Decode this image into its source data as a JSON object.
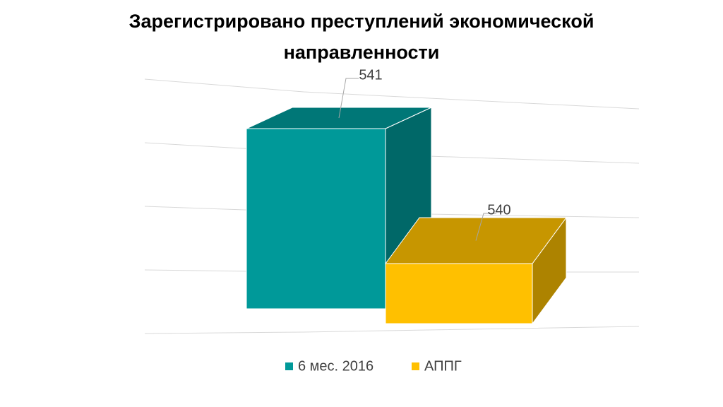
{
  "chart_data": {
    "type": "bar3d",
    "title": "Зарегистрировано преступлений экономической направленности",
    "categories": [
      null
    ],
    "series": [
      {
        "name": "6 мес. 2016",
        "color": "#009999",
        "values": [
          541
        ]
      },
      {
        "name": "АППГ",
        "color": "#ffc000",
        "values": [
          540
        ]
      }
    ],
    "ylim": [
      539.5,
      541.5
    ],
    "yticks": [
      539.5,
      540,
      540.5,
      541,
      541.5
    ],
    "grid": true,
    "legend": "bottom"
  }
}
